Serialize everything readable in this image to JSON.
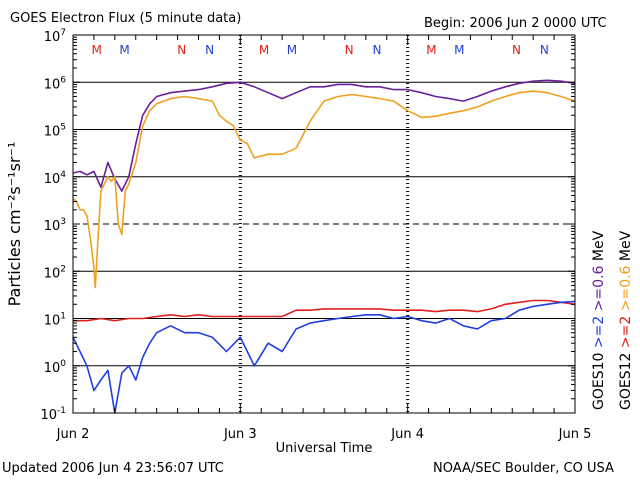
{
  "header": {
    "title": "GOES Electron Flux (5 minute data)",
    "begin": "Begin: 2006 Jun 2 0000 UTC"
  },
  "footer": {
    "updated": "Updated 2006 Jun  4 23:56:07 UTC",
    "credit": "NOAA/SEC Boulder, CO USA"
  },
  "chart_data": {
    "type": "line",
    "title": "GOES Electron Flux (5 minute data)",
    "xlabel": "Universal Time",
    "ylabel": "Particles cm⁻²s⁻¹sr⁻¹",
    "yscale": "log",
    "ylim": [
      0.1,
      10000000.0
    ],
    "xlim": [
      0,
      72
    ],
    "x_unit": "hours since 2006 Jun 2 0000 UTC",
    "x_ticks": [
      {
        "x": 0,
        "label": "Jun 2"
      },
      {
        "x": 24,
        "label": "Jun 3"
      },
      {
        "x": 48,
        "label": "Jun 4"
      },
      {
        "x": 72,
        "label": "Jun 5"
      }
    ],
    "y_ticks": [
      {
        "exp": -1,
        "base": "10",
        "sup": "-1"
      },
      {
        "exp": 0,
        "base": "10",
        "sup": "0"
      },
      {
        "exp": 1,
        "base": "10",
        "sup": "1"
      },
      {
        "exp": 2,
        "base": "10",
        "sup": "2"
      },
      {
        "exp": 3,
        "base": "10",
        "sup": "3"
      },
      {
        "exp": 4,
        "base": "10",
        "sup": "4"
      },
      {
        "exp": 5,
        "base": "10",
        "sup": "5"
      },
      {
        "exp": 6,
        "base": "10",
        "sup": "6"
      },
      {
        "exp": 7,
        "base": "10",
        "sup": "7"
      }
    ],
    "gridlines": {
      "solid": [
        0,
        1,
        2,
        4,
        5,
        6
      ],
      "dashed": [
        3
      ]
    },
    "day_markers": [
      24,
      48
    ],
    "mn_markers": [
      {
        "x": 3.4,
        "label": "M",
        "color": "#e0201b"
      },
      {
        "x": 7.4,
        "label": "M",
        "color": "#1f3fe0"
      },
      {
        "x": 15.6,
        "label": "N",
        "color": "#e0201b"
      },
      {
        "x": 19.6,
        "label": "N",
        "color": "#1f3fe0"
      },
      {
        "x": 27.4,
        "label": "M",
        "color": "#e0201b"
      },
      {
        "x": 31.4,
        "label": "M",
        "color": "#1f3fe0"
      },
      {
        "x": 39.6,
        "label": "N",
        "color": "#e0201b"
      },
      {
        "x": 43.6,
        "label": "N",
        "color": "#1f3fe0"
      },
      {
        "x": 51.4,
        "label": "M",
        "color": "#e0201b"
      },
      {
        "x": 55.4,
        "label": "M",
        "color": "#1f3fe0"
      },
      {
        "x": 63.6,
        "label": "N",
        "color": "#e0201b"
      },
      {
        "x": 67.6,
        "label": "N",
        "color": "#1f3fe0"
      }
    ],
    "legend": {
      "placement": "right",
      "right_text": "GOES12   >=2   >=0.6   MeV",
      "left_text": "GOES10   >=2   >=0.6   MeV",
      "right_colored": [
        {
          "text": "GOES12",
          "color": "#000000"
        },
        {
          "text": ">=2",
          "color": "#e0201b"
        },
        {
          "text": ">=0.6",
          "color": "#f0a020"
        },
        {
          "text": "MeV",
          "color": "#000000"
        }
      ],
      "left_colored": [
        {
          "text": "GOES10",
          "color": "#000000"
        },
        {
          "text": ">=2",
          "color": "#1f3fe0"
        },
        {
          "text": ">=0.6",
          "color": "#6a1f9a"
        },
        {
          "text": "MeV",
          "color": "#000000"
        }
      ]
    },
    "series": [
      {
        "name": "GOES10 >=0.6 MeV",
        "color": "#6a1f9a",
        "x": [
          0,
          1,
          2,
          3,
          4,
          5,
          6,
          7,
          8,
          9,
          10,
          11,
          12,
          14,
          16,
          18,
          20,
          22,
          24,
          26,
          28,
          30,
          32,
          34,
          36,
          38,
          40,
          42,
          44,
          46,
          48,
          50,
          52,
          54,
          56,
          58,
          60,
          62,
          64,
          66,
          68,
          70,
          72
        ],
        "y": [
          12000.0,
          13000.0,
          11000.0,
          13000.0,
          6000.0,
          20000.0,
          9000.0,
          5000.0,
          10000.0,
          50000.0,
          200000.0,
          350000.0,
          500000.0,
          600000.0,
          650000.0,
          700000.0,
          800000.0,
          950000.0,
          1000000.0,
          800000.0,
          600000.0,
          450000.0,
          600000.0,
          800000.0,
          800000.0,
          900000.0,
          900000.0,
          800000.0,
          800000.0,
          700000.0,
          700000.0,
          600000.0,
          500000.0,
          450000.0,
          400000.0,
          500000.0,
          650000.0,
          800000.0,
          950000.0,
          1050000.0,
          1100000.0,
          1050000.0,
          950000.0
        ]
      },
      {
        "name": "GOES12 >=0.6 MeV",
        "color": "#f0a020",
        "x": [
          0,
          0.5,
          1,
          1.5,
          2,
          2.5,
          3,
          3.2,
          3.5,
          4,
          5,
          5.5,
          6,
          6.5,
          7,
          7.5,
          8,
          9,
          10,
          11,
          12,
          14,
          16,
          18,
          20,
          21,
          22,
          23,
          24,
          25,
          26,
          28,
          30,
          32,
          34,
          36,
          38,
          40,
          42,
          44,
          46,
          48,
          50,
          52,
          54,
          56,
          58,
          60,
          62,
          64,
          66,
          68,
          70,
          72
        ],
        "y": [
          3500.0,
          3000.0,
          2000.0,
          2000.0,
          1500.0,
          500.0,
          120.0,
          45,
          300.0,
          5000.0,
          10000.0,
          8000.0,
          10000.0,
          1000.0,
          600.0,
          5000.0,
          7000.0,
          20000.0,
          120000.0,
          250000.0,
          350000.0,
          450000.0,
          500000.0,
          450000.0,
          400000.0,
          200000.0,
          150000.0,
          120000.0,
          60000.0,
          50000.0,
          25000.0,
          30000.0,
          30000.0,
          40000.0,
          150000.0,
          400000.0,
          500000.0,
          550000.0,
          500000.0,
          450000.0,
          400000.0,
          250000.0,
          180000.0,
          190000.0,
          220000.0,
          250000.0,
          300000.0,
          400000.0,
          500000.0,
          600000.0,
          650000.0,
          600000.0,
          500000.0,
          400000.0
        ]
      },
      {
        "name": "GOES12 >=2 MeV",
        "color": "#e0201b",
        "x": [
          0,
          2,
          4,
          6,
          8,
          10,
          12,
          14,
          16,
          18,
          20,
          22,
          24,
          26,
          28,
          30,
          32,
          34,
          36,
          38,
          40,
          42,
          44,
          46,
          48,
          50,
          52,
          54,
          56,
          58,
          60,
          62,
          64,
          66,
          68,
          70,
          72
        ],
        "y": [
          9,
          9,
          10,
          9,
          10,
          10,
          11,
          12,
          11,
          12,
          11,
          11,
          11,
          11,
          11,
          11,
          15,
          15,
          16,
          16,
          16,
          16,
          16,
          15,
          15,
          15,
          14,
          15,
          15,
          14,
          16,
          20,
          22,
          24,
          24,
          22,
          20
        ]
      },
      {
        "name": "GOES10 >=2 MeV",
        "color": "#1f3fe0",
        "x": [
          0,
          1,
          2,
          3,
          4,
          5,
          6,
          7,
          8,
          9,
          10,
          11,
          12,
          14,
          16,
          18,
          20,
          22,
          24,
          26,
          28,
          30,
          32,
          34,
          36,
          38,
          40,
          42,
          44,
          46,
          48,
          50,
          52,
          54,
          56,
          58,
          60,
          62,
          64,
          66,
          68,
          70,
          72
        ],
        "y": [
          4,
          2,
          1,
          0.3,
          0.5,
          0.8,
          0.1,
          0.7,
          1,
          0.5,
          1.5,
          3,
          5,
          7,
          5,
          5,
          4,
          2,
          4,
          1,
          3,
          2,
          6,
          8,
          9,
          10,
          11,
          12,
          12,
          10,
          11,
          9,
          8,
          10,
          7,
          6,
          9,
          10,
          15,
          18,
          20,
          22,
          23
        ]
      }
    ]
  }
}
